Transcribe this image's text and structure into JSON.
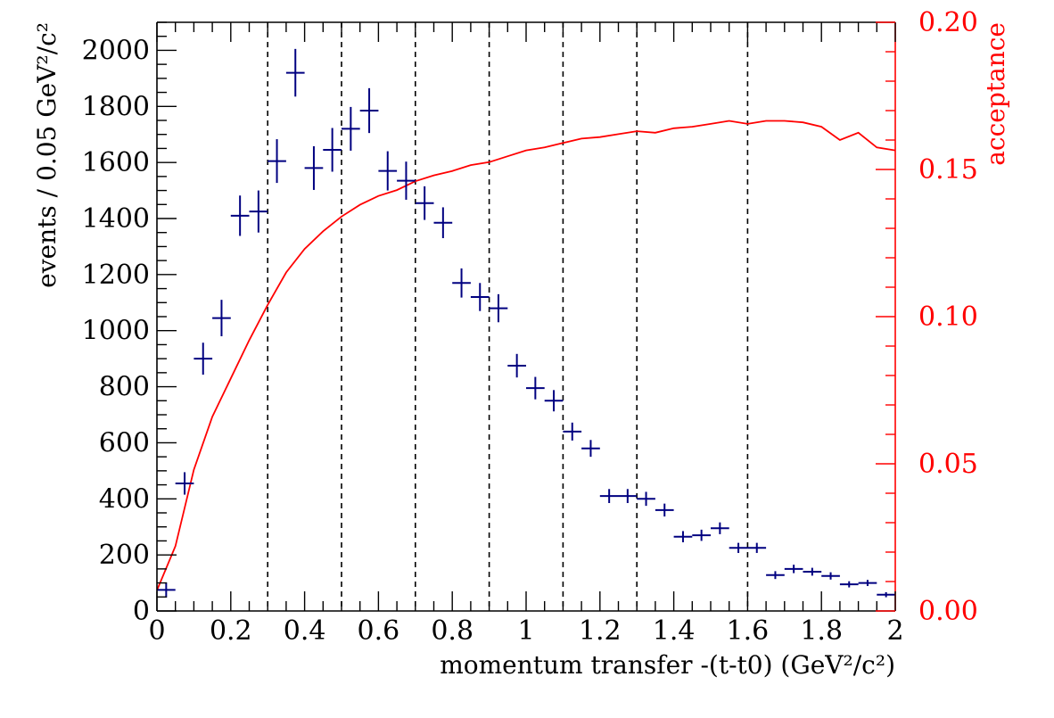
{
  "chart_data": {
    "type": "scatter",
    "xlabel": "momentum transfer -(t-t0) (GeV²/c²)",
    "ylabel": "events / 0.05 GeV²/c²",
    "y2label": "acceptance",
    "xlim": [
      0,
      2
    ],
    "ylim": [
      0,
      2100
    ],
    "y2lim": [
      0,
      0.2
    ],
    "x_ticks": [
      "0",
      "0.2",
      "0.4",
      "0.6",
      "0.8",
      "1",
      "1.2",
      "1.4",
      "1.6",
      "1.8",
      "2"
    ],
    "y_ticks": [
      "0",
      "200",
      "400",
      "600",
      "800",
      "1000",
      "1200",
      "1400",
      "1600",
      "1800",
      "2000"
    ],
    "y2_ticks": [
      "0.00",
      "0.05",
      "0.10",
      "0.15",
      "0.20"
    ],
    "grid": false,
    "vertical_lines_x": [
      0.3,
      0.5,
      0.7,
      0.9,
      1.1,
      1.3,
      1.6
    ],
    "colors": {
      "events": "#000080",
      "acceptance": "#ff0000",
      "axis": "#000000"
    },
    "series": [
      {
        "axis": "left",
        "style": "error-bars",
        "x": [
          0.025,
          0.075,
          0.125,
          0.175,
          0.225,
          0.275,
          0.325,
          0.375,
          0.425,
          0.475,
          0.525,
          0.575,
          0.625,
          0.675,
          0.725,
          0.775,
          0.825,
          0.875,
          0.925,
          0.975,
          1.025,
          1.075,
          1.125,
          1.175,
          1.225,
          1.275,
          1.325,
          1.375,
          1.425,
          1.475,
          1.525,
          1.575,
          1.625,
          1.675,
          1.725,
          1.775,
          1.825,
          1.875,
          1.925,
          1.975
        ],
        "y": [
          75,
          455,
          900,
          1045,
          1410,
          1425,
          1605,
          1920,
          1580,
          1645,
          1720,
          1785,
          1570,
          1535,
          1455,
          1385,
          1170,
          1120,
          1080,
          875,
          795,
          750,
          640,
          580,
          410,
          410,
          400,
          360,
          265,
          270,
          295,
          225,
          225,
          128,
          150,
          140,
          125,
          95,
          100,
          58
        ],
        "yerr": [
          27,
          40,
          57,
          65,
          72,
          75,
          78,
          85,
          78,
          78,
          78,
          80,
          70,
          68,
          60,
          55,
          52,
          50,
          50,
          42,
          40,
          38,
          32,
          30,
          25,
          25,
          25,
          23,
          20,
          20,
          21,
          18,
          18,
          14,
          15,
          14,
          13,
          11,
          11,
          9
        ]
      },
      {
        "axis": "right",
        "style": "line",
        "x": [
          0.0,
          0.05,
          0.1,
          0.15,
          0.2,
          0.25,
          0.3,
          0.35,
          0.4,
          0.45,
          0.5,
          0.55,
          0.6,
          0.65,
          0.7,
          0.75,
          0.8,
          0.85,
          0.9,
          0.95,
          1.0,
          1.05,
          1.1,
          1.15,
          1.2,
          1.25,
          1.3,
          1.35,
          1.4,
          1.45,
          1.5,
          1.55,
          1.6,
          1.65,
          1.7,
          1.75,
          1.8,
          1.85,
          1.9,
          1.95,
          2.0
        ],
        "y": [
          0.007,
          0.022,
          0.048,
          0.066,
          0.079,
          0.092,
          0.104,
          0.115,
          0.123,
          0.129,
          0.134,
          0.138,
          0.141,
          0.143,
          0.146,
          0.148,
          0.1495,
          0.1515,
          0.1525,
          0.1545,
          0.1565,
          0.1575,
          0.159,
          0.1605,
          0.161,
          0.162,
          0.163,
          0.1625,
          0.164,
          0.1645,
          0.1655,
          0.1665,
          0.1655,
          0.1665,
          0.1665,
          0.166,
          0.1645,
          0.16,
          0.1625,
          0.1575,
          0.1565
        ]
      }
    ]
  }
}
